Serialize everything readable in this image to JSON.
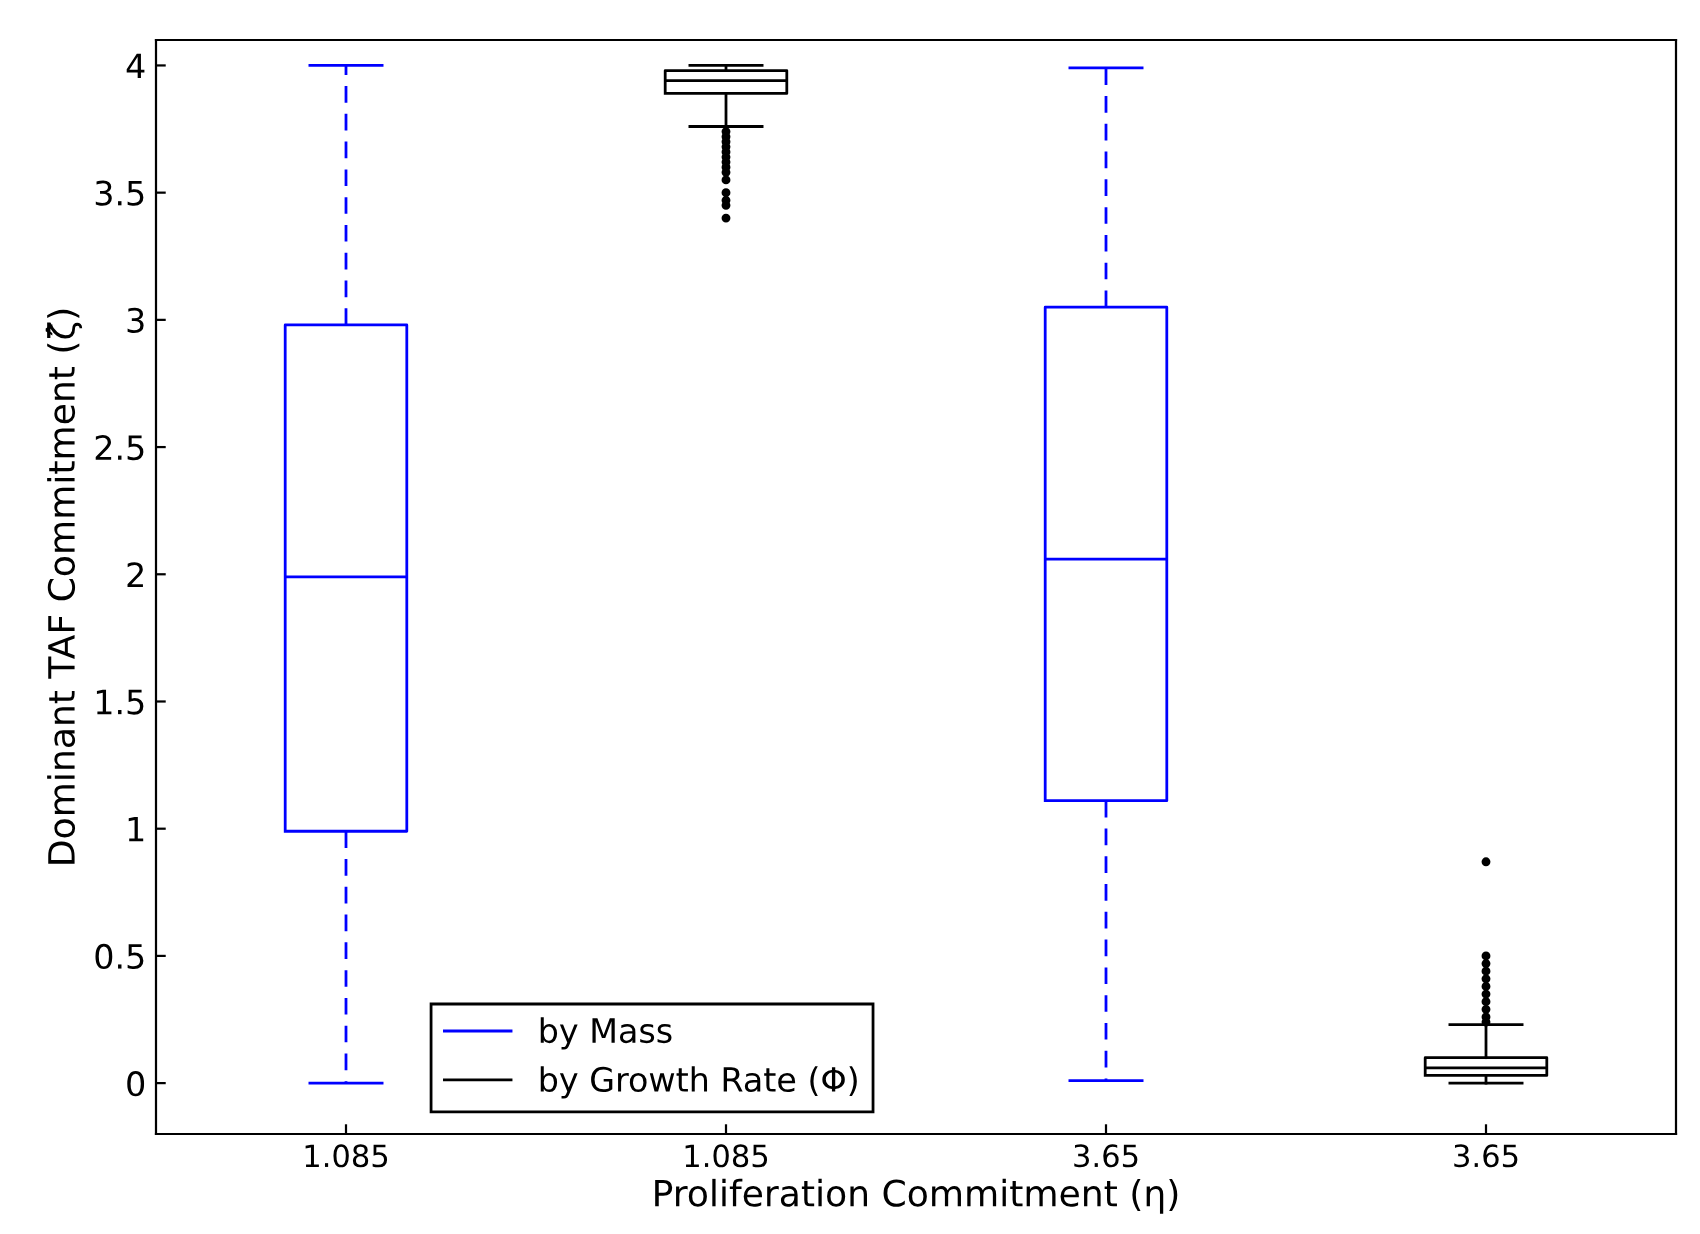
{
  "chart_data": {
    "type": "box",
    "xlabel": "Proliferation Commitment (η)",
    "ylabel": "Dominant TAF Commitment (ζ̂)",
    "categories": [
      "1.085",
      "1.085",
      "3.65",
      "3.65"
    ],
    "series": [
      {
        "name": "by Mass",
        "color": "#0000ff",
        "line_style": "dashed",
        "boxes": [
          {
            "low": 0,
            "q1": 0.99,
            "median": 1.99,
            "q3": 2.98,
            "high": 4.0
          },
          null,
          {
            "low": 0.01,
            "q1": 1.11,
            "median": 2.06,
            "q3": 3.05,
            "high": 3.99
          },
          null
        ]
      },
      {
        "name": "by Growth Rate (Φ)",
        "color": "#000000",
        "line_style": "solid",
        "boxes": [
          null,
          {
            "low": 3.76,
            "q1": 3.89,
            "median": 3.94,
            "q3": 3.98,
            "high": 4.0,
            "outliers": [
              3.74,
              3.72,
              3.7,
              3.68,
              3.66,
              3.64,
              3.62,
              3.6,
              3.58,
              3.55,
              3.5,
              3.47,
              3.45,
              3.4
            ]
          },
          null,
          {
            "low": 0.0,
            "q1": 0.03,
            "median": 0.06,
            "q3": 0.1,
            "high": 0.23,
            "outliers": [
              0.24,
              0.26,
              0.29,
              0.32,
              0.35,
              0.38,
              0.41,
              0.44,
              0.47,
              0.5,
              0.87
            ]
          }
        ]
      }
    ],
    "ylim": [
      -0.2,
      4.1
    ],
    "yticks": [
      0,
      0.5,
      1,
      1.5,
      2,
      2.5,
      3,
      3.5,
      4
    ],
    "legend": "bottom left"
  }
}
